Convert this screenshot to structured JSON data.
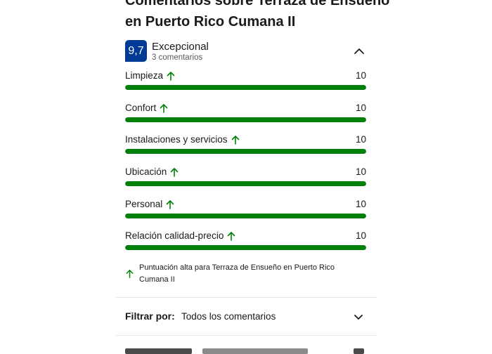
{
  "header": {
    "title": "Comentarios sobre Terraza de Ensueño en Puerto Rico Cumana II"
  },
  "summary": {
    "score": "9,7",
    "label": "Excepcional",
    "count": "3 comentarios",
    "badge_color": "#003b95"
  },
  "ratings": [
    {
      "label": "Limpieza",
      "value": "10",
      "fill_fraction": 1.0,
      "trend_icon": "arrow-up-icon"
    },
    {
      "label": "Confort",
      "value": "10",
      "fill_fraction": 1.0,
      "trend_icon": "arrow-up-icon"
    },
    {
      "label": "Instalaciones y servicios",
      "value": "10",
      "fill_fraction": 1.0,
      "trend_icon": "arrow-up-icon"
    },
    {
      "label": "Ubicación",
      "value": "10",
      "fill_fraction": 1.0,
      "trend_icon": "arrow-up-icon"
    },
    {
      "label": "Personal",
      "value": "10",
      "fill_fraction": 1.0,
      "trend_icon": "arrow-up-icon"
    },
    {
      "label": "Relación calidad-precio",
      "value": "10",
      "fill_fraction": 1.0,
      "trend_icon": "arrow-up-icon"
    }
  ],
  "colors": {
    "bar_fill": "#008009",
    "bar_track": "#e7e7e7",
    "trend_arrow": "#008009"
  },
  "note": {
    "text": "Puntuación alta para Terraza de Ensueño en Puerto Rico Cumana II"
  },
  "filter": {
    "label": "Filtrar por:",
    "value": "Todos los comentarios"
  }
}
